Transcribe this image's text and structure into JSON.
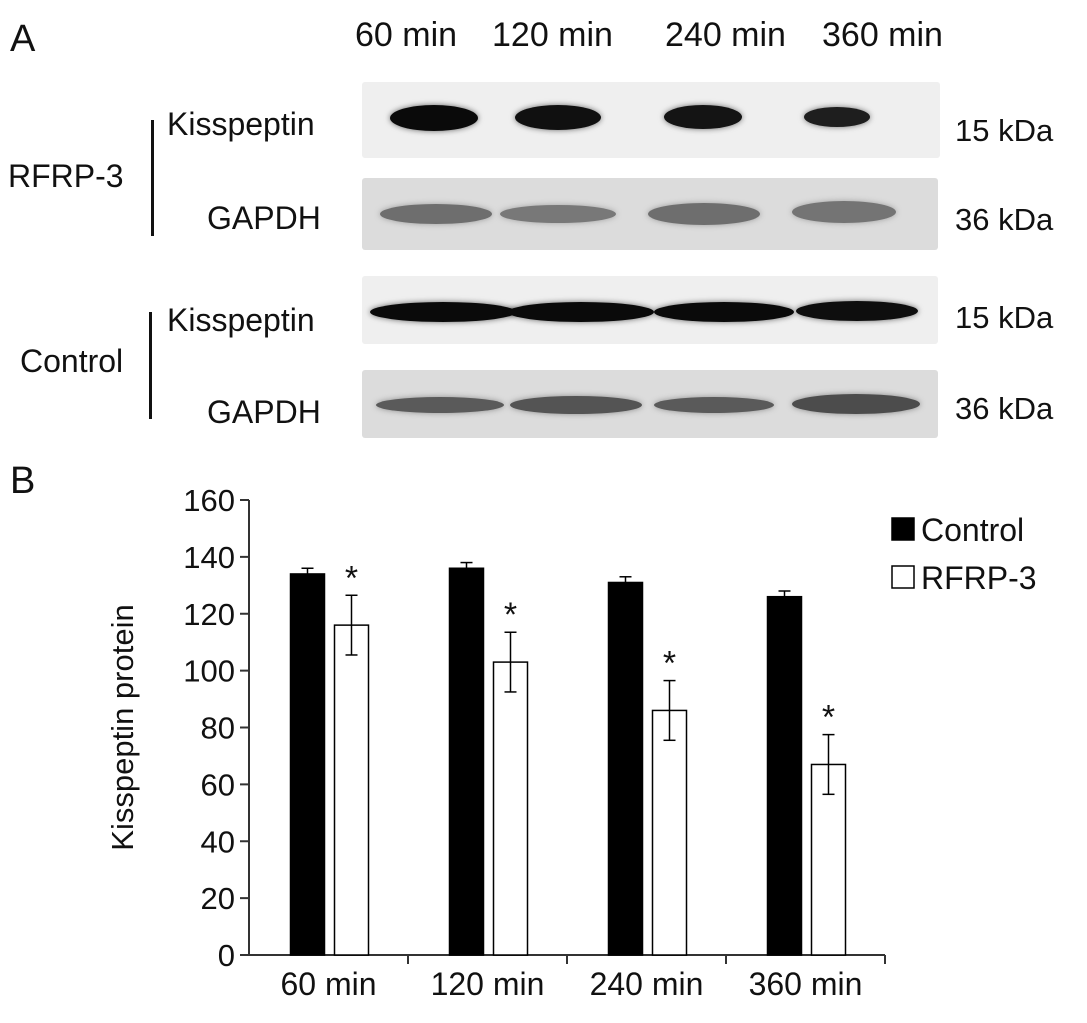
{
  "panel_a": {
    "letter": "A",
    "lanes": [
      "60 min",
      "120 min",
      "240 min",
      "360 min"
    ],
    "groups": [
      {
        "label": "RFRP-3",
        "rows": [
          {
            "label": "Kisspeptin",
            "kda": "15 kDa",
            "intensity": [
              0.95,
              0.92,
              0.9,
              0.85
            ]
          },
          {
            "label": "GAPDH",
            "kda": "36 kDa",
            "intensity": [
              0.45,
              0.4,
              0.45,
              0.42
            ]
          }
        ]
      },
      {
        "label": "Control",
        "rows": [
          {
            "label": "Kisspeptin",
            "kda": "15 kDa",
            "intensity": [
              0.95,
              0.95,
              0.95,
              0.93
            ]
          },
          {
            "label": "GAPDH",
            "kda": "36 kDa",
            "intensity": [
              0.55,
              0.58,
              0.55,
              0.62
            ]
          }
        ]
      }
    ]
  },
  "panel_b": {
    "letter": "B"
  },
  "chart_data": {
    "type": "bar",
    "categories": [
      "60 min",
      "120 min",
      "240 min",
      "360 min"
    ],
    "series": [
      {
        "name": "Control",
        "values": [
          134,
          136,
          131,
          126
        ],
        "errors": [
          2,
          2,
          2,
          2
        ],
        "color": "#000000"
      },
      {
        "name": "RFRP-3",
        "values": [
          116,
          103,
          86,
          67
        ],
        "errors": [
          10.5,
          10.5,
          10.5,
          10.5
        ],
        "color": "#ffffff",
        "annotations": [
          "*",
          "*",
          "*",
          "*"
        ]
      }
    ],
    "ylabel": "Kisspeptin protein",
    "ylim": [
      0,
      160
    ],
    "yticks": [
      0,
      20,
      40,
      60,
      80,
      100,
      120,
      140,
      160
    ],
    "legend_position": "top-right",
    "grid": false
  }
}
